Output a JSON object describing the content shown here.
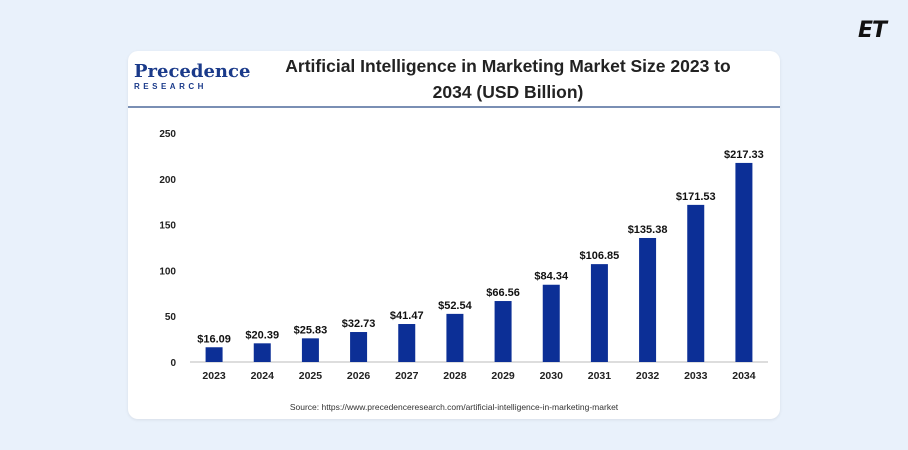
{
  "header": {
    "logo_text": "ET"
  },
  "brand": {
    "name": "Precedence",
    "sub": "RESEARCH"
  },
  "source_text": "Source: https://www.precedenceresearch.com/artificial-intelligence-in-marketing-market",
  "colors": {
    "bar": "#0c2f96",
    "background": "#e9f1fb",
    "card": "#ffffff"
  },
  "chart_data": {
    "type": "bar",
    "title": "Artificial Intelligence in Marketing Market Size 2023 to 2034 (USD Billion)",
    "title_lines": [
      "Artificial Intelligence in Marketing Market Size 2023 to",
      "2034 (USD Billion)"
    ],
    "categories": [
      "2023",
      "2024",
      "2025",
      "2026",
      "2027",
      "2028",
      "2029",
      "2030",
      "2031",
      "2032",
      "2033",
      "2034"
    ],
    "values": [
      16.09,
      20.39,
      25.83,
      32.73,
      41.47,
      52.54,
      66.56,
      84.34,
      106.85,
      135.38,
      171.53,
      217.33
    ],
    "labels": [
      "$16.09",
      "$20.39",
      "$25.83",
      "$32.73",
      "$41.47",
      "$52.54",
      "$66.56",
      "$84.34",
      "$106.85",
      "$135.38",
      "$171.53",
      "$217.33"
    ],
    "ylim": [
      0,
      250
    ],
    "yticks": [
      0,
      50,
      100,
      150,
      200,
      250
    ],
    "xlabel": "",
    "ylabel": "",
    "grid": false
  }
}
